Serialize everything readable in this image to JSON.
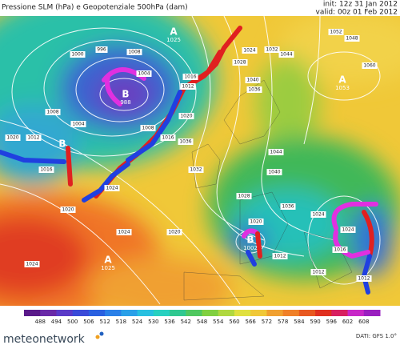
{
  "header": {
    "title": "Pressione SLM (hPa) e Geopotenziale 500hPa (dam)",
    "init": "init: 12z 31 Jan 2012",
    "valid": "valid: 00z 01 Feb 2012"
  },
  "map": {
    "centers": [
      {
        "letter": "A",
        "value": "1025"
      },
      {
        "letter": "B",
        "value": "988"
      },
      {
        "letter": "B"
      },
      {
        "letter": "A",
        "value": "1053"
      },
      {
        "letter": "A",
        "value": "1025"
      },
      {
        "letter": "B",
        "value": "1002"
      }
    ],
    "isobar_labels": [
      "1000",
      "996",
      "1008",
      "1004",
      "1004",
      "1008",
      "1012",
      "1020",
      "1016",
      "1008",
      "1012",
      "1016",
      "1020",
      "1016",
      "1024",
      "1020",
      "1024",
      "1024",
      "1020",
      "1028",
      "1024",
      "1032",
      "1044",
      "1052",
      "1048",
      "1060",
      "1040",
      "1036",
      "1044",
      "1040",
      "1036",
      "1032",
      "1028",
      "1036",
      "1024",
      "1024",
      "1020",
      "1016",
      "1012",
      "1012",
      "1012"
    ]
  },
  "legend": {
    "labels": [
      488,
      494,
      500,
      506,
      512,
      518,
      524,
      530,
      536,
      542,
      548,
      554,
      560,
      566,
      572,
      578,
      584,
      590,
      596,
      602,
      608
    ]
  },
  "footer": {
    "source": "DATI: GFS 1.0°",
    "brand": "meteonetwork"
  }
}
